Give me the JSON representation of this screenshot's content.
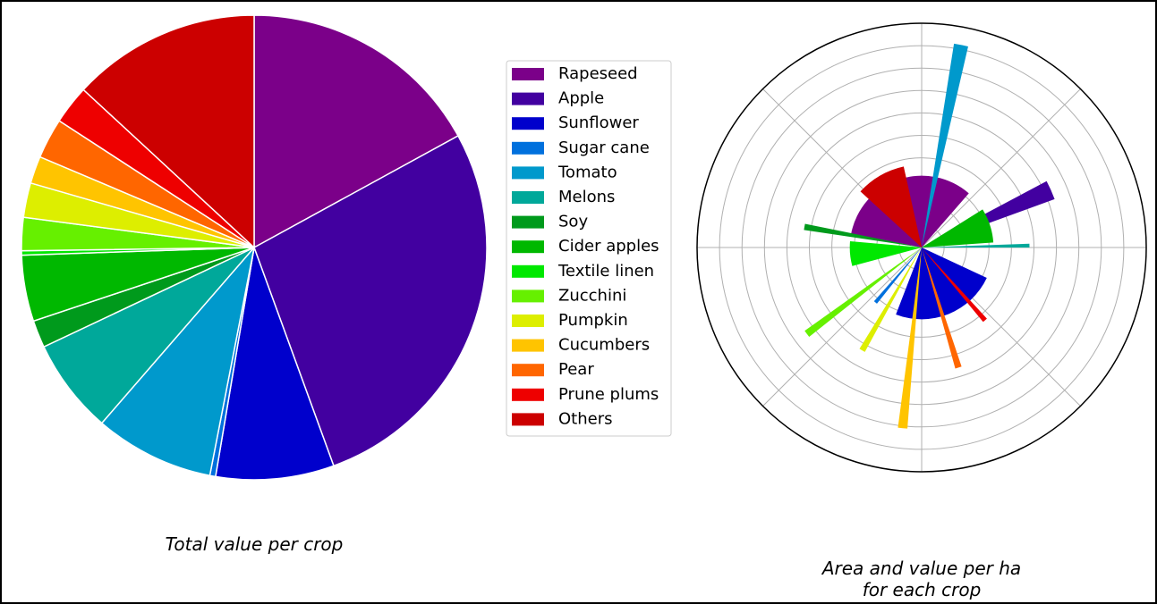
{
  "chart_data": [
    {
      "type": "pie",
      "title": "Total value per crop",
      "categories": [
        "Rapeseed",
        "Apple",
        "Sunflower",
        "Sugar cane",
        "Tomato",
        "Melons",
        "Soy",
        "Cider apples",
        "Textile linen",
        "Zucchini",
        "Pumpkin",
        "Cucumbers",
        "Pear",
        "Prune plums",
        "Others"
      ],
      "values": [
        17,
        27.4,
        8.2,
        0.4,
        8.3,
        6.6,
        1.9,
        4.6,
        0.3,
        2.3,
        2.4,
        1.9,
        2.8,
        2.7,
        13.1
      ],
      "colors": [
        "#7b0089",
        "#4200a0",
        "#0000cc",
        "#0070dd",
        "#0099cc",
        "#00a89a",
        "#009a1c",
        "#00b800",
        "#00e800",
        "#66f000",
        "#ddee00",
        "#ffc400",
        "#ff6600",
        "#ee0000",
        "#cc0000"
      ],
      "legend": "right"
    },
    {
      "type": "polar_bar",
      "title": "Area and value per ha for each crop",
      "theta": [
        341,
        66,
        158,
        220,
        11,
        89,
        280,
        72,
        265,
        233,
        210,
        186,
        163,
        139,
        330
      ],
      "widths": [
        120,
        8,
        86,
        3,
        4,
        2,
        3,
        28,
        20,
        3,
        3,
        3,
        3,
        3,
        35
      ],
      "values": [
        3.2,
        6.3,
        3.2,
        3.2,
        9.2,
        4.8,
        5.3,
        3.2,
        3.2,
        6.4,
        5.3,
        8.1,
        5.6,
        4.3,
        3.7
      ],
      "ylim": [
        0,
        10
      ],
      "yticks": [
        1,
        2,
        3,
        4,
        5,
        6,
        7,
        8,
        9
      ],
      "xticks": [
        0,
        45,
        90,
        135,
        180,
        225,
        270,
        315
      ],
      "grid": true
    }
  ]
}
